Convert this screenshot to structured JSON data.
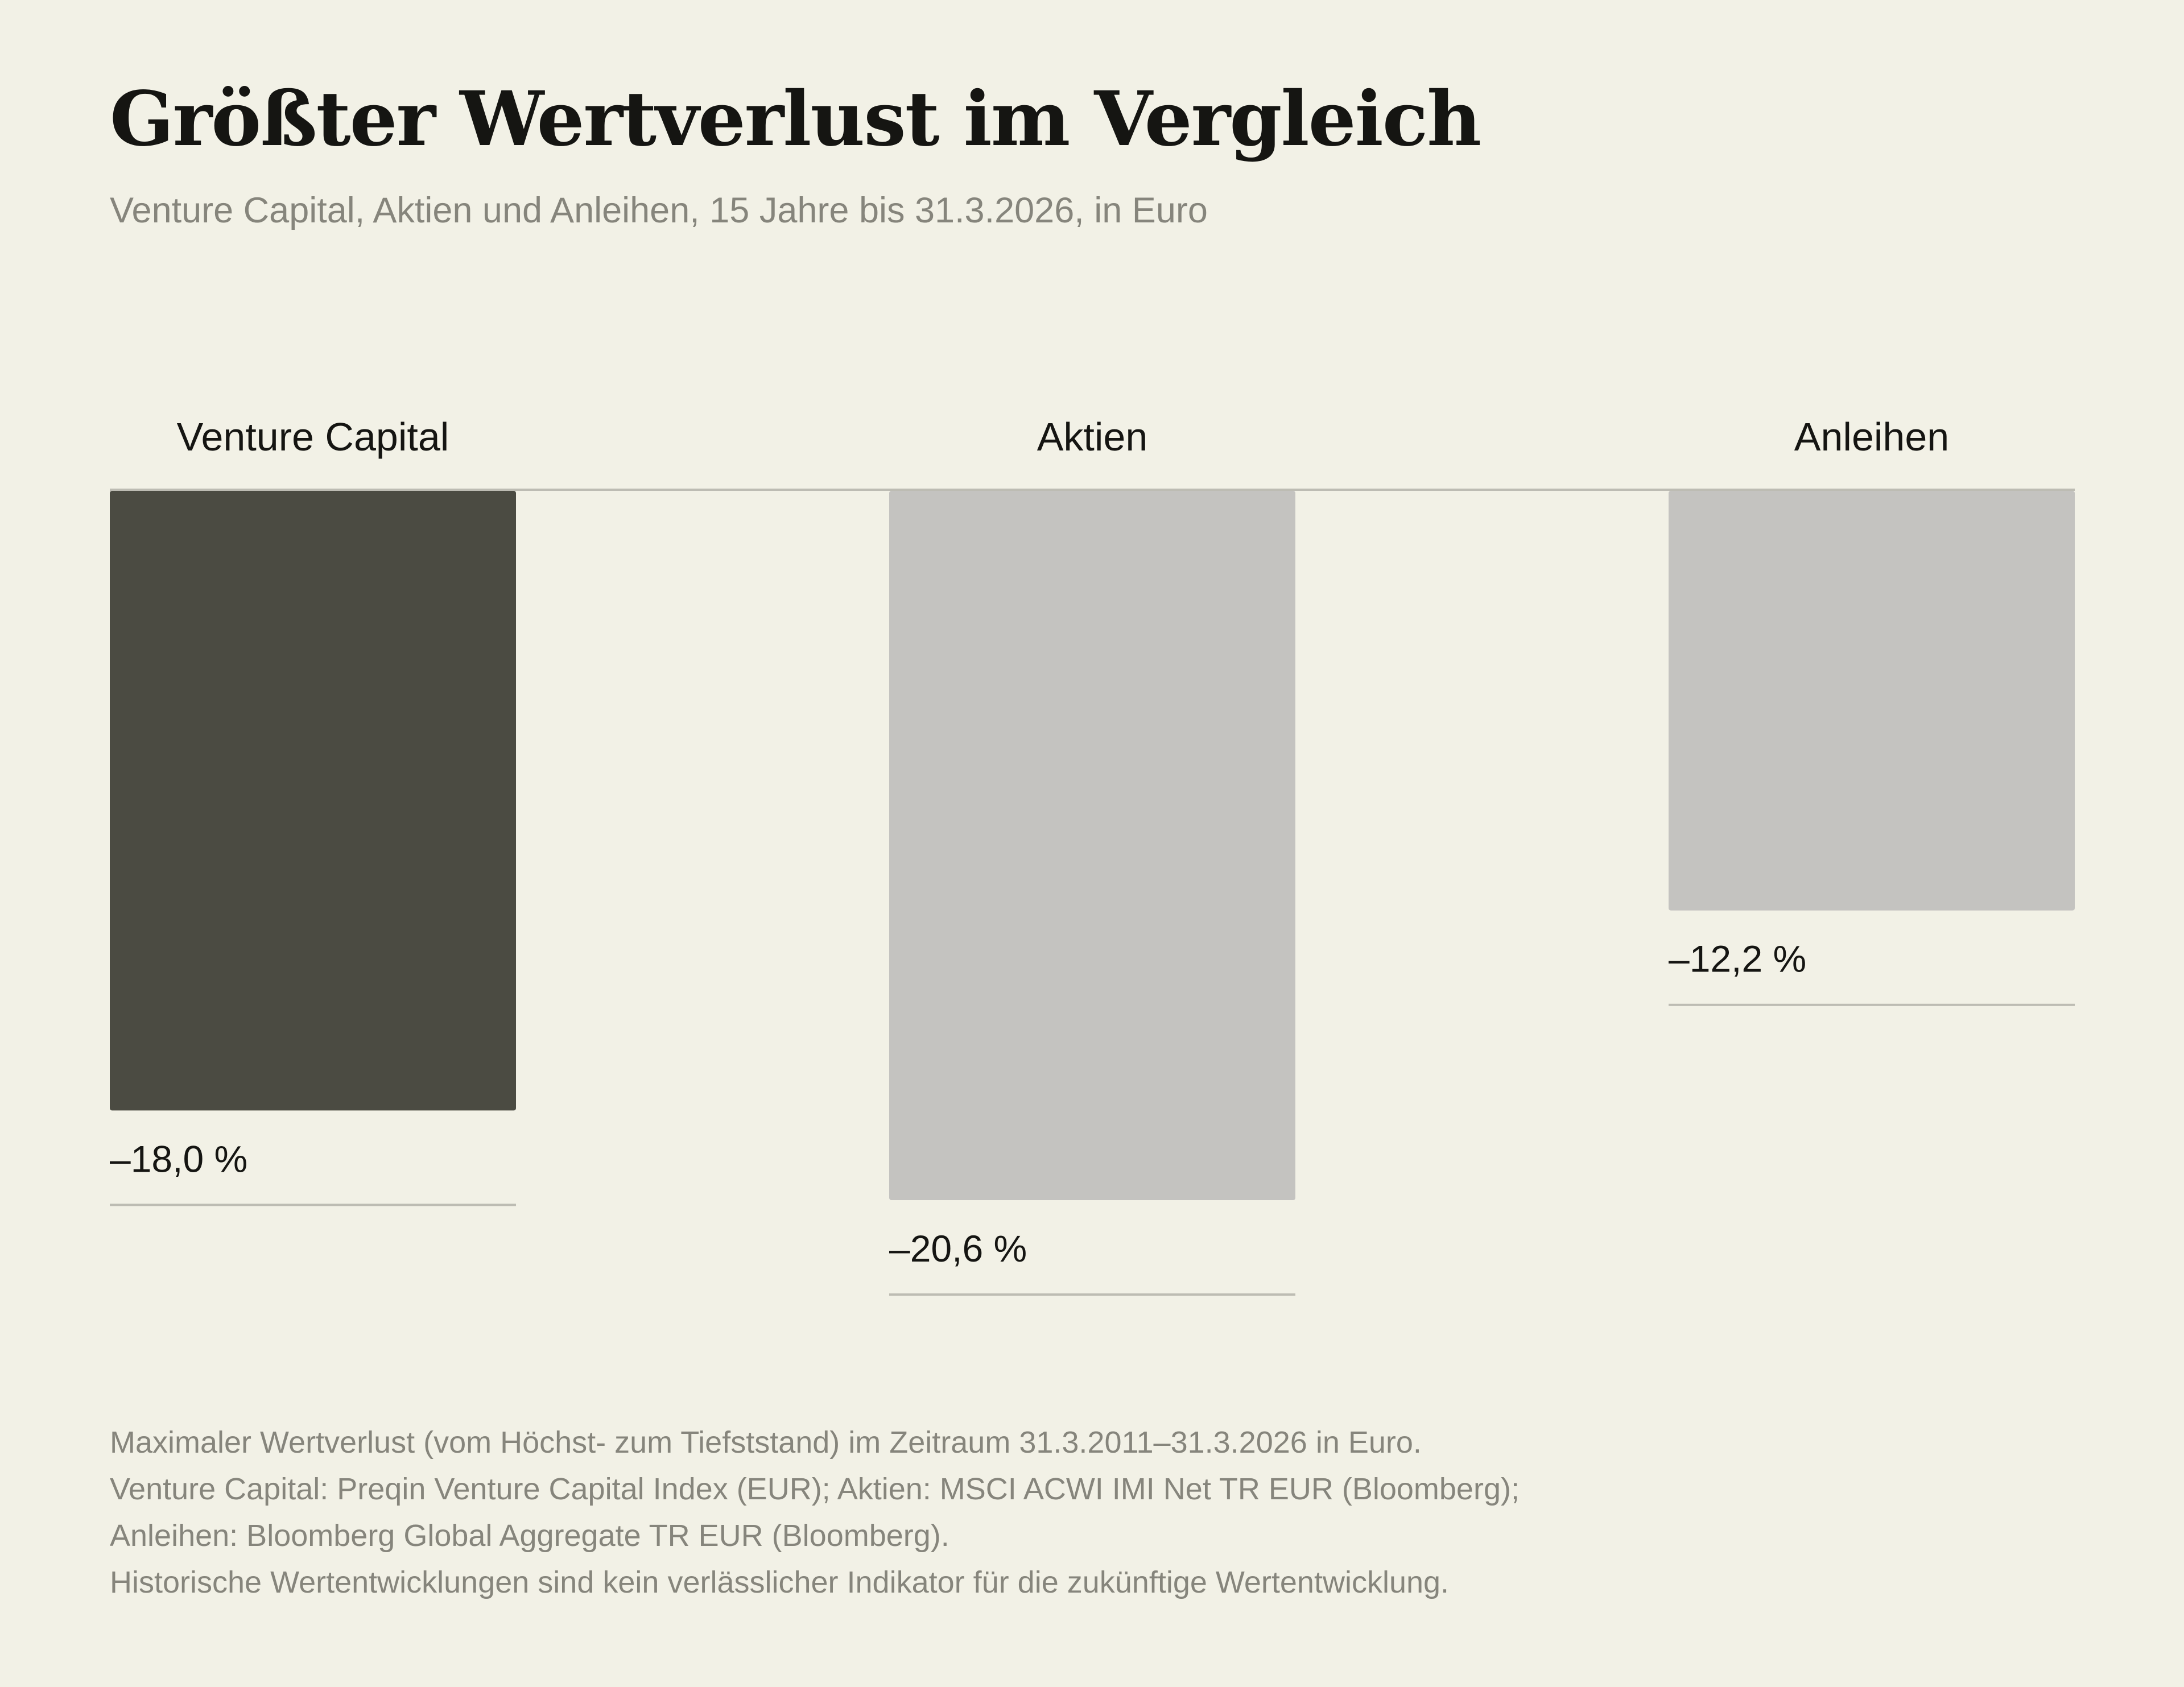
{
  "chart_data": {
    "type": "bar",
    "title": "Größter Wertverlust im Vergleich",
    "subtitle": "Venture Capital, Aktien und Anleihen, 15 Jahre bis 31.3.2026, in Euro",
    "categories": [
      "Venture Capital",
      "Aktien",
      "Anleihen"
    ],
    "values": [
      -18.0,
      -20.6,
      -12.2
    ],
    "value_labels": [
      "–18,0 %",
      "–20,6 %",
      "–12,2 %"
    ],
    "unit": "%",
    "ylim": [
      -20.6,
      0
    ],
    "orientation": "bars hang down from zero baseline",
    "grid": false,
    "legend": "none",
    "colors": [
      "#4b4b42",
      "#c4c3c0",
      "#c4c3c0"
    ],
    "baseline_color": "#bdbcb3"
  },
  "footnotes": [
    "Maximaler Wertverlust (vom Höchst- zum Tiefststand) im Zeitraum 31.3.2011–31.3.2026 in Euro.",
    "Venture Capital: Preqin Venture Capital Index (EUR); Aktien: MSCI ACWI IMI Net TR EUR (Bloomberg);",
    "Anleihen: Bloomberg Global Aggregate TR EUR (Bloomberg).",
    "Historische Wertentwicklungen sind kein verlässlicher Indikator für die zukünftige Wertentwicklung."
  ]
}
